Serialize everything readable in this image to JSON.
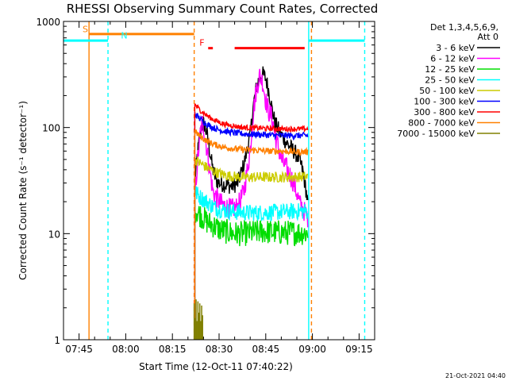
{
  "chart_data": {
    "type": "line",
    "title": "RHESSI Observing Summary Count Rates, Corrected",
    "ylabel": "Corrected Count Rate (s⁻¹ detector⁻¹)",
    "xlabel": "Start Time (12-Oct-11 07:40:22)",
    "x_unit": "minutes after 07:40",
    "xlim": [
      0,
      100
    ],
    "ylim": [
      1,
      1000
    ],
    "yscale": "log",
    "x_ticks": [
      {
        "value": 5,
        "label": "07:45"
      },
      {
        "value": 20,
        "label": "08:00"
      },
      {
        "value": 35,
        "label": "08:15"
      },
      {
        "value": 50,
        "label": "08:30"
      },
      {
        "value": 65,
        "label": "08:45"
      },
      {
        "value": 80,
        "label": "09:00"
      },
      {
        "value": 95,
        "label": "09:15"
      }
    ],
    "x_minor_ticks": [
      10,
      15,
      25,
      30,
      40,
      45,
      55,
      60,
      70,
      75,
      85,
      90
    ],
    "y_ticks": [
      {
        "value": 1,
        "label": "1"
      },
      {
        "value": 10,
        "label": "10"
      },
      {
        "value": 100,
        "label": "100"
      },
      {
        "value": 1000,
        "label": "1000"
      }
    ],
    "legend": {
      "position": "right",
      "header_lines": [
        "Det 1,3,4,5,6,9,",
        "Att 0"
      ],
      "entries": [
        {
          "label": "3 - 6 keV",
          "color": "#000000"
        },
        {
          "label": "6 - 12 keV",
          "color": "#ff00ff"
        },
        {
          "label": "12 - 25 keV",
          "color": "#00dd00"
        },
        {
          "label": "25 - 50 keV",
          "color": "#00ffff"
        },
        {
          "label": "50 - 100 keV",
          "color": "#cccc00"
        },
        {
          "label": "100 - 300 keV",
          "color": "#0000ff"
        },
        {
          "label": "300 - 800 keV",
          "color": "#ff0000"
        },
        {
          "label": "800 - 7000 keV",
          "color": "#ff8000"
        },
        {
          "label": "7000 - 15000 keV",
          "color": "#808000"
        }
      ]
    },
    "series": [
      {
        "name": "3 - 6 keV",
        "color": "#000000",
        "noise": 0.08,
        "x": [
          42.2,
          43,
          44,
          44.5,
          45,
          46,
          47,
          48,
          49,
          50,
          52,
          54,
          56,
          58,
          60,
          61,
          62,
          63,
          64,
          65,
          66,
          67,
          68,
          70,
          72,
          74,
          75,
          76,
          77,
          78,
          78.6
        ],
        "y": [
          30,
          55,
          90,
          105,
          110,
          90,
          60,
          40,
          32,
          30,
          29,
          28,
          30,
          45,
          85,
          160,
          240,
          300,
          320,
          290,
          220,
          150,
          110,
          85,
          70,
          60,
          55,
          48,
          38,
          25,
          18
        ]
      },
      {
        "name": "6 - 12 keV",
        "color": "#ff00ff",
        "noise": 0.1,
        "x": [
          42.2,
          43,
          44,
          44.5,
          45,
          46,
          47,
          48,
          50,
          52,
          54,
          56,
          58,
          60,
          61,
          62,
          63,
          64,
          65,
          66,
          67,
          68,
          69,
          70,
          72,
          74,
          75,
          76,
          77,
          78,
          78.6
        ],
        "y": [
          22,
          45,
          90,
          110,
          105,
          65,
          40,
          25,
          20,
          18,
          17,
          18,
          25,
          60,
          140,
          230,
          310,
          270,
          180,
          140,
          125,
          85,
          65,
          50,
          40,
          30,
          24,
          19,
          17,
          15,
          14
        ]
      },
      {
        "name": "12 - 25 keV",
        "color": "#00dd00",
        "noise": 0.12,
        "x": [
          42.2,
          44,
          45,
          46,
          48,
          50,
          52,
          55,
          58,
          61,
          64,
          68,
          72,
          76,
          78.6
        ],
        "y": [
          17,
          15,
          14,
          13,
          12,
          11,
          10.5,
          10,
          10,
          10.2,
          10.5,
          10.3,
          10.2,
          10.2,
          10.1
        ]
      },
      {
        "name": "25 - 50 keV",
        "color": "#00ffff",
        "noise": 0.08,
        "x": [
          42.2,
          44,
          46,
          48,
          50,
          52,
          55,
          58,
          62,
          66,
          70,
          74,
          78.6
        ],
        "y": [
          25,
          22,
          20,
          18,
          17,
          16.5,
          16,
          15.8,
          15.7,
          15.8,
          16,
          16.2,
          16.3
        ]
      },
      {
        "name": "50 - 100 keV",
        "color": "#cccc00",
        "noise": 0.05,
        "x": [
          42.2,
          44,
          46,
          48,
          50,
          52,
          55,
          58,
          62,
          66,
          70,
          74,
          78.6
        ],
        "y": [
          50,
          46,
          42,
          39,
          37,
          35.5,
          34.5,
          34,
          34,
          34,
          34,
          34.2,
          34.5
        ]
      },
      {
        "name": "100 - 300 keV",
        "color": "#0000ff",
        "noise": 0.03,
        "x": [
          42.2,
          44,
          46,
          48,
          50,
          52,
          55,
          58,
          62,
          66,
          70,
          74,
          78.6
        ],
        "y": [
          135,
          120,
          108,
          100,
          95,
          92,
          89,
          87,
          86,
          85,
          84,
          84,
          84
        ]
      },
      {
        "name": "300 - 800 keV",
        "color": "#ff0000",
        "noise": 0.025,
        "x": [
          42.2,
          44,
          46,
          48,
          50,
          52,
          55,
          58,
          62,
          66,
          70,
          74,
          78.6
        ],
        "y": [
          165,
          145,
          130,
          120,
          112,
          107,
          103,
          100,
          99,
          98,
          97,
          97,
          97
        ]
      },
      {
        "name": "800 - 7000 keV",
        "color": "#ff8000",
        "noise": 0.03,
        "x": [
          42.2,
          44,
          46,
          48,
          50,
          52,
          55,
          58,
          62,
          66,
          70,
          74,
          78.6
        ],
        "y": [
          92,
          82,
          75,
          70,
          67,
          65,
          63,
          62,
          61,
          60,
          60,
          59,
          59
        ]
      },
      {
        "name": "7000 - 15000 keV",
        "color": "#808000",
        "noise": 0,
        "x": [
          42.0,
          42.3,
          42.6,
          42.9,
          43.2,
          43.5,
          43.8,
          44.1,
          44.4,
          44.7
        ],
        "y": [
          2.2,
          1.6,
          2.4,
          1.5,
          2.3,
          1.8,
          2.2,
          1.5,
          2.1,
          1.7
        ]
      }
    ],
    "vlines": [
      {
        "x": 8.2,
        "color": "#ff8000",
        "dashed": false
      },
      {
        "x": 14.3,
        "color": "#00ffff",
        "dashed": true
      },
      {
        "x": 42.0,
        "color": "#ff8000",
        "dashed": true
      },
      {
        "x": 78.8,
        "color": "#00ffff",
        "dashed": false
      },
      {
        "x": 79.7,
        "color": "#ff8000",
        "dashed": true
      },
      {
        "x": 96.8,
        "color": "#00ffff",
        "dashed": true
      }
    ],
    "hbars": [
      {
        "x0": 0,
        "x1": 14.3,
        "y": 660,
        "color": "#00ffff"
      },
      {
        "x0": 8.2,
        "x1": 42.0,
        "y": 760,
        "color": "#ff8000"
      },
      {
        "x0": 78.8,
        "x1": 96.8,
        "y": 660,
        "color": "#00ffff"
      },
      {
        "x0": 46.5,
        "x1": 48.0,
        "y": 560,
        "color": "#ff0000"
      },
      {
        "x0": 55.0,
        "x1": 77.5,
        "y": 560,
        "color": "#ff0000"
      }
    ],
    "annotations": [
      {
        "text": "S",
        "x": 7.0,
        "y": 790,
        "color": "#ff8000"
      },
      {
        "text": "N",
        "x": 19.5,
        "y": 690,
        "color": "#00ffff"
      },
      {
        "text": "F",
        "x": 44.5,
        "y": 590,
        "color": "#ff0000"
      }
    ],
    "footer_timestamp": "21-Oct-2021 04:40"
  }
}
